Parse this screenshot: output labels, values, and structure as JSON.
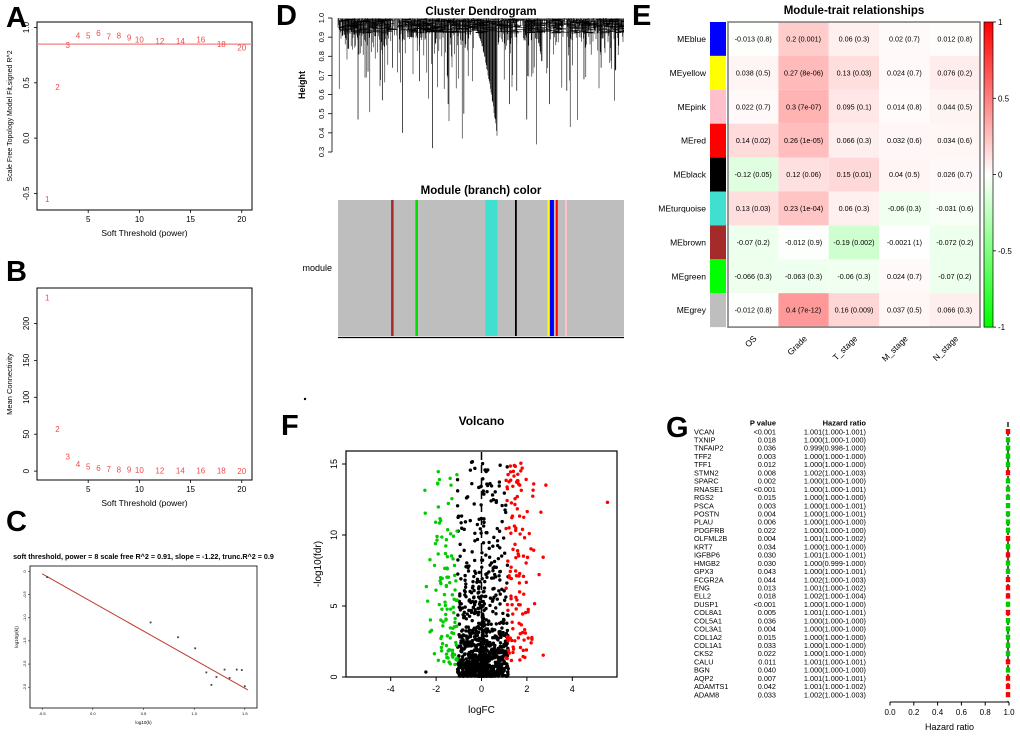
{
  "figure": {
    "background": "#ffffff"
  },
  "panel_labels": {
    "a": "A",
    "b": "B",
    "c": "C",
    "d": "D",
    "e": "E",
    "f": "F",
    "g": "G"
  },
  "chart_data": [
    {
      "id": "A",
      "type": "scatter",
      "xlabel": "Soft Threshold (power)",
      "ylabel": "Scale Free Topology Model Fit,signed R^2",
      "xticks": [
        "5",
        "10",
        "15",
        "20"
      ],
      "yticks": [
        "-0.5",
        "0.0",
        "0.5",
        "1.0"
      ],
      "xlim": [
        0,
        21
      ],
      "ylim": [
        -0.65,
        1.05
      ],
      "hline": {
        "y": 0.85,
        "color": "#F08080"
      },
      "label_color": "#F04A4A",
      "points": [
        [
          "1",
          1,
          -0.55
        ],
        [
          "2",
          2,
          0.46
        ],
        [
          "3",
          3,
          0.84
        ],
        [
          "4",
          4,
          0.93
        ],
        [
          "5",
          5,
          0.93
        ],
        [
          "6",
          6,
          0.95
        ],
        [
          "7",
          7,
          0.92
        ],
        [
          "8",
          8,
          0.93
        ],
        [
          "9",
          9,
          0.91
        ],
        [
          "10",
          10,
          0.89
        ],
        [
          "12",
          12,
          0.88
        ],
        [
          "14",
          14,
          0.88
        ],
        [
          "16",
          16,
          0.89
        ],
        [
          "18",
          18,
          0.85
        ],
        [
          "20",
          20,
          0.82
        ]
      ]
    },
    {
      "id": "B",
      "type": "scatter",
      "xlabel": "Soft Threshold (power)",
      "ylabel": "Mean Connectivity",
      "xticks": [
        "5",
        "10",
        "15",
        "20"
      ],
      "yticks": [
        "0",
        "50",
        "100",
        "150",
        "200"
      ],
      "xlim": [
        0,
        21
      ],
      "ylim": [
        -12,
        248
      ],
      "label_color": "#F04A4A",
      "points": [
        [
          "1",
          1,
          235
        ],
        [
          "2",
          2,
          57
        ],
        [
          "3",
          3,
          20
        ],
        [
          "4",
          4,
          10
        ],
        [
          "5",
          5,
          6
        ],
        [
          "6",
          6,
          4
        ],
        [
          "7",
          7,
          3
        ],
        [
          "8",
          8,
          2.5
        ],
        [
          "9",
          9,
          2
        ],
        [
          "10",
          10,
          1.8
        ],
        [
          "12",
          12,
          1.2
        ],
        [
          "14",
          14,
          1
        ],
        [
          "16",
          16,
          0.8
        ],
        [
          "18",
          18,
          0.6
        ],
        [
          "20",
          20,
          0.5
        ]
      ]
    },
    {
      "id": "C",
      "type": "scatter_line",
      "title": "soft threshold, power = 8 scale free R^2 = 0.91, slope = -1.22, trunc.R^2 = 0.9",
      "xlabel": "log10(k)",
      "ylabel": "log10(p(k))",
      "xticks": [
        "-0.5",
        "0.0",
        "0.5",
        "1.0",
        "1.5"
      ],
      "yticks": [
        "0",
        "-0.5",
        "-1.0",
        "-1.5",
        "-2.0",
        "-2.5"
      ],
      "xlim": [
        -0.62,
        1.62
      ],
      "ylim": [
        -2.95,
        0.12
      ],
      "line": {
        "x1": -0.5,
        "y1": -0.05,
        "x2": 1.53,
        "y2": -2.56,
        "color": "#C0392B"
      },
      "points": [
        [
          -0.45,
          -0.12
        ],
        [
          0.57,
          -1.1
        ],
        [
          0.84,
          -1.42
        ],
        [
          1.01,
          -1.66
        ],
        [
          1.12,
          -2.18
        ],
        [
          1.17,
          -2.45
        ],
        [
          1.22,
          -2.28
        ],
        [
          1.3,
          -2.12
        ],
        [
          1.35,
          -2.3
        ],
        [
          1.42,
          -2.12
        ],
        [
          1.47,
          -2.13
        ],
        [
          1.5,
          -2.48
        ]
      ]
    },
    {
      "id": "D",
      "type": "dendrogram",
      "title": "Cluster Dendrogram",
      "ylabel": "Height",
      "yticks": [
        "0.3",
        "0.4",
        "0.5",
        "0.6",
        "0.7",
        "0.8",
        "0.9",
        "1.0"
      ],
      "ylim": [
        0.3,
        1.0
      ],
      "gen": {
        "seed": 77,
        "step": 0.6,
        "gaps": [
          [
            0.185,
            0.205
          ],
          [
            0.627,
            0.645
          ],
          [
            0.715,
            0.728
          ],
          [
            0.788,
            0.8
          ]
        ],
        "deep_spikes": [
          [
            0.035,
            0.84
          ],
          [
            0.07,
            0.47
          ],
          [
            0.105,
            0.72
          ],
          [
            0.155,
            0.57
          ],
          [
            0.19,
            0.74
          ],
          [
            0.225,
            0.4
          ],
          [
            0.285,
            0.67
          ],
          [
            0.33,
            0.32
          ],
          [
            0.385,
            0.55
          ],
          [
            0.44,
            0.5
          ],
          [
            0.6,
            0.55
          ],
          [
            0.625,
            0.62
          ],
          [
            0.66,
            0.47
          ],
          [
            0.74,
            0.55
          ],
          [
            0.8,
            0.62
          ],
          [
            0.86,
            0.68
          ],
          [
            0.92,
            0.74
          ]
        ]
      },
      "module_bar": {
        "title": "Module (branch) color",
        "row_label": "module",
        "background": "#BEBEBE",
        "stripes": [
          {
            "color": "#A52A2A",
            "pos": 0.19,
            "width": 2.5
          },
          {
            "color": "#00DD00",
            "pos": 0.275,
            "width": 2.5
          },
          {
            "color": "#40E0D0",
            "pos": 0.536,
            "width": 12
          },
          {
            "color": "#000000",
            "pos": 0.622,
            "width": 1.8
          },
          {
            "color": "#FFFF00",
            "pos": 0.736,
            "width": 2
          },
          {
            "color": "#0000FF",
            "pos": 0.748,
            "width": 4
          },
          {
            "color": "#FF0000",
            "pos": 0.765,
            "width": 2
          },
          {
            "color": "#FFC0CB",
            "pos": 0.797,
            "width": 2
          }
        ]
      }
    },
    {
      "id": "E",
      "type": "heatmap",
      "title": "Module-trait relationships",
      "columns": [
        "OS",
        "Grade",
        "T_stage",
        "M_stage",
        "N_stage"
      ],
      "rows": [
        {
          "label": "MEblue",
          "color": "#0000FF",
          "values": [
            -0.013,
            0.2,
            0.06,
            0.02,
            0.012
          ],
          "display": [
            "-0.013 (0.8)",
            "0.2 (0.001)",
            "0.06 (0.3)",
            "0.02 (0.7)",
            "0.012 (0.8)"
          ]
        },
        {
          "label": "MEyellow",
          "color": "#FFFF00",
          "values": [
            0.038,
            0.27,
            0.13,
            0.024,
            0.076
          ],
          "display": [
            "0.038 (0.5)",
            "0.27 (8e-06)",
            "0.13 (0.03)",
            "0.024 (0.7)",
            "0.076 (0.2)"
          ]
        },
        {
          "label": "MEpink",
          "color": "#FFC0CB",
          "values": [
            0.022,
            0.3,
            0.095,
            0.014,
            0.044
          ],
          "display": [
            "0.022 (0.7)",
            "0.3 (7e-07)",
            "0.095 (0.1)",
            "0.014 (0.8)",
            "0.044 (0.5)"
          ]
        },
        {
          "label": "MEred",
          "color": "#FF0000",
          "values": [
            0.14,
            0.26,
            0.066,
            0.032,
            0.034
          ],
          "display": [
            "0.14 (0.02)",
            "0.26 (1e-05)",
            "0.066 (0.3)",
            "0.032 (0.6)",
            "0.034 (0.6)"
          ]
        },
        {
          "label": "MEblack",
          "color": "#000000",
          "values": [
            -0.12,
            0.12,
            0.15,
            0.04,
            0.026
          ],
          "display": [
            "-0.12 (0.05)",
            "0.12 (0.06)",
            "0.15 (0.01)",
            "0.04 (0.5)",
            "0.026 (0.7)"
          ]
        },
        {
          "label": "MEturquoise",
          "color": "#40E0D0",
          "values": [
            0.13,
            0.23,
            0.06,
            -0.06,
            -0.031
          ],
          "display": [
            "0.13 (0.03)",
            "0.23 (1e-04)",
            "0.06 (0.3)",
            "-0.06 (0.3)",
            "-0.031 (0.6)"
          ]
        },
        {
          "label": "MEbrown",
          "color": "#A52A2A",
          "values": [
            -0.07,
            -0.012,
            -0.19,
            -0.0021,
            -0.072
          ],
          "display": [
            "-0.07 (0.2)",
            "-0.012 (0.9)",
            "-0.19 (0.002)",
            "-0.0021 (1)",
            "-0.072 (0.2)"
          ]
        },
        {
          "label": "MEgreen",
          "color": "#00FF00",
          "values": [
            -0.066,
            -0.063,
            -0.06,
            0.024,
            -0.07
          ],
          "display": [
            "-0.066 (0.3)",
            "-0.063 (0.3)",
            "-0.06 (0.3)",
            "0.024 (0.7)",
            "-0.07 (0.2)"
          ]
        },
        {
          "label": "MEgrey",
          "color": "#BEBEBE",
          "values": [
            -0.012,
            0.4,
            0.16,
            0.037,
            0.066
          ],
          "display": [
            "-0.012 (0.8)",
            "0.4 (7e-12)",
            "0.16 (0.009)",
            "0.037 (0.5)",
            "0.066 (0.3)"
          ]
        }
      ],
      "colorbar": {
        "ticks": [
          "1",
          "0.5",
          "0",
          "-0.5",
          "-1"
        ],
        "top_color": "#FF0000",
        "mid_color": "#FFFFFF",
        "bottom_color": "#00FF00"
      }
    },
    {
      "id": "F",
      "type": "volcano",
      "title": "Volcano",
      "xlabel": "logFC",
      "ylabel": "-log10(fdr)",
      "xticks": [
        "-4",
        "-2",
        "0",
        "2",
        "4"
      ],
      "yticks": [
        "0",
        "5",
        "10",
        "15"
      ],
      "xlim": [
        -5.95,
        5.95
      ],
      "ylim": [
        0,
        15.9
      ],
      "vline_x": 0,
      "colors": {
        "up": "#FF0000",
        "down": "#00CC00",
        "ns": "#000000"
      },
      "gen": {
        "seed": 42,
        "n_ns": 950,
        "n_down": 112,
        "n_up": 130,
        "fc_threshold": 1
      },
      "extra_points": [
        {
          "x": 5.55,
          "y": 12.3,
          "cls": "up"
        },
        {
          "x": -2.45,
          "y": 0.35,
          "cls": "ns"
        }
      ]
    },
    {
      "id": "G",
      "type": "forest",
      "header_p": "P value",
      "header_hr": "Hazard ratio",
      "axis_label": "Hazard ratio",
      "axis_ticks": [
        "0.0",
        "0.2",
        "0.4",
        "0.6",
        "0.8",
        "1.0"
      ],
      "marker_colors": {
        "risk": "#FF0000",
        "protective": "#00CC00"
      },
      "genes": [
        [
          "VCAN",
          "<0.001",
          "1.001(1.000-1.001)",
          "risk"
        ],
        [
          "TXNIP",
          "0.018",
          "1.000(1.000-1.000)",
          "protective"
        ],
        [
          "TNFAIP2",
          "0.036",
          "0.999(0.998-1.000)",
          "protective"
        ],
        [
          "TFF2",
          "0.003",
          "1.000(1.000-1.000)",
          "protective"
        ],
        [
          "TFF1",
          "0.012",
          "1.000(1.000-1.000)",
          "protective"
        ],
        [
          "STMN2",
          "0.008",
          "1.002(1.000-1.003)",
          "risk"
        ],
        [
          "SPARC",
          "0.002",
          "1.000(1.000-1.000)",
          "protective"
        ],
        [
          "RNASE1",
          "<0.001",
          "1.000(1.000-1.001)",
          "protective"
        ],
        [
          "RGS2",
          "0.015",
          "1.000(1.000-1.000)",
          "protective"
        ],
        [
          "PSCA",
          "0.003",
          "1.000(1.000-1.001)",
          "protective"
        ],
        [
          "POSTN",
          "0.004",
          "1.000(1.000-1.001)",
          "protective"
        ],
        [
          "PLAU",
          "0.006",
          "1.000(1.000-1.000)",
          "protective"
        ],
        [
          "PDGFRB",
          "0.022",
          "1.000(1.000-1.000)",
          "protective"
        ],
        [
          "OLFML2B",
          "0.004",
          "1.001(1.000-1.002)",
          "risk"
        ],
        [
          "KRT7",
          "0.034",
          "1.000(1.000-1.000)",
          "protective"
        ],
        [
          "IGFBP6",
          "0.030",
          "1.001(1.000-1.001)",
          "risk"
        ],
        [
          "HMGB2",
          "0.030",
          "1.000(0.999-1.000)",
          "protective"
        ],
        [
          "GPX3",
          "0.043",
          "1.000(1.000-1.001)",
          "protective"
        ],
        [
          "FCGR2A",
          "0.044",
          "1.002(1.000-1.003)",
          "risk"
        ],
        [
          "ENG",
          "0.013",
          "1.001(1.000-1.002)",
          "risk"
        ],
        [
          "ELL2",
          "0.018",
          "1.002(1.000-1.004)",
          "risk"
        ],
        [
          "DUSP1",
          "<0.001",
          "1.000(1.000-1.000)",
          "protective"
        ],
        [
          "COL8A1",
          "0.005",
          "1.001(1.000-1.001)",
          "risk"
        ],
        [
          "COL5A1",
          "0.036",
          "1.000(1.000-1.000)",
          "protective"
        ],
        [
          "COL3A1",
          "0.004",
          "1.000(1.000-1.000)",
          "protective"
        ],
        [
          "COL1A2",
          "0.015",
          "1.000(1.000-1.000)",
          "protective"
        ],
        [
          "COL1A1",
          "0.033",
          "1.000(1.000-1.000)",
          "protective"
        ],
        [
          "CKS2",
          "0.022",
          "1.000(1.000-1.000)",
          "protective"
        ],
        [
          "CALU",
          "0.011",
          "1.001(1.000-1.001)",
          "risk"
        ],
        [
          "BGN",
          "0.040",
          "1.000(1.000-1.000)",
          "protective"
        ],
        [
          "AQP2",
          "0.007",
          "1.001(1.000-1.001)",
          "risk"
        ],
        [
          "ADAMTS1",
          "0.042",
          "1.001(1.000-1.002)",
          "risk"
        ],
        [
          "ADAM8",
          "0.033",
          "1.002(1.000-1.003)",
          "risk"
        ]
      ]
    }
  ]
}
